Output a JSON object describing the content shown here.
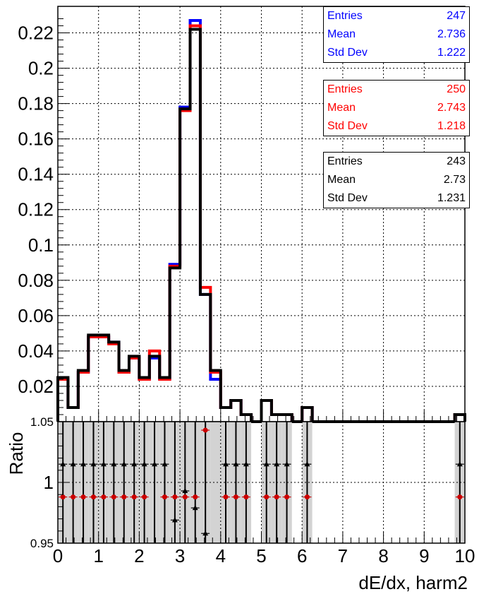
{
  "chart_data": [
    {
      "type": "line",
      "title": "",
      "xlabel": "dE/dx, harm2",
      "ylabel": "",
      "xlim": [
        0,
        10
      ],
      "ylim": [
        0,
        0.235
      ],
      "bin_width": 0.25,
      "grid": true,
      "y_ticks": [
        "0.02",
        "0.04",
        "0.06",
        "0.08",
        "0.1",
        "0.12",
        "0.14",
        "0.16",
        "0.18",
        "0.2",
        "0.22"
      ],
      "series": [
        {
          "color": "#0000ff",
          "values": [
            0.024,
            0.008,
            0.028,
            0.048,
            0.048,
            0.045,
            0.028,
            0.036,
            0.024,
            0.036,
            0.024,
            0.089,
            0.178,
            0.227,
            0.072,
            0.024,
            0.008,
            0.012,
            0.004,
            0,
            0.012,
            0.004,
            0.004,
            0,
            0.008,
            0,
            0,
            0,
            0,
            0,
            0,
            0,
            0,
            0,
            0,
            0,
            0,
            0,
            0,
            0.004
          ]
        },
        {
          "color": "#ff0000",
          "values": [
            0.024,
            0.008,
            0.028,
            0.048,
            0.048,
            0.044,
            0.028,
            0.036,
            0.024,
            0.04,
            0.024,
            0.088,
            0.176,
            0.224,
            0.076,
            0.028,
            0.008,
            0.012,
            0.004,
            0,
            0.012,
            0.004,
            0.004,
            0,
            0.008,
            0,
            0,
            0,
            0,
            0,
            0,
            0,
            0,
            0,
            0,
            0,
            0,
            0,
            0,
            0.004
          ]
        },
        {
          "color": "#000000",
          "values": [
            0.025,
            0.008,
            0.029,
            0.049,
            0.049,
            0.045,
            0.029,
            0.037,
            0.025,
            0.037,
            0.025,
            0.087,
            0.177,
            0.222,
            0.072,
            0.029,
            0.008,
            0.012,
            0.004,
            0,
            0.012,
            0.004,
            0.004,
            0,
            0.008,
            0,
            0,
            0,
            0,
            0,
            0,
            0,
            0,
            0,
            0,
            0,
            0,
            0,
            0,
            0.004
          ]
        }
      ],
      "stats": [
        {
          "color": "#0000ff",
          "rows": [
            [
              "Entries",
              "247"
            ],
            [
              "Mean",
              "2.736"
            ],
            [
              "Std Dev",
              "1.222"
            ]
          ]
        },
        {
          "color": "#ff0000",
          "rows": [
            [
              "Entries",
              "250"
            ],
            [
              "Mean",
              "2.743"
            ],
            [
              "Std Dev",
              "1.218"
            ]
          ]
        },
        {
          "color": "#000000",
          "rows": [
            [
              "Entries",
              "243"
            ],
            [
              "Mean",
              "2.73"
            ],
            [
              "Std Dev",
              "1.231"
            ]
          ]
        }
      ]
    },
    {
      "type": "scatter",
      "title": "",
      "xlabel": "dE/dx, harm2",
      "ylabel": "Ratio",
      "xlim": [
        0,
        10
      ],
      "ylim": [
        0.95,
        1.05
      ],
      "grid": true,
      "y_ticks": [
        "0.95",
        "1",
        "1.05"
      ],
      "x_ticks": [
        "0",
        "1",
        "2",
        "3",
        "4",
        "5",
        "6",
        "7",
        "8",
        "9",
        "10"
      ],
      "error_band_bins": [
        0,
        1,
        2,
        3,
        4,
        5,
        6,
        7,
        8,
        9,
        10,
        11,
        12,
        13,
        14,
        15,
        16,
        17,
        18,
        20,
        21,
        22,
        24,
        39
      ],
      "series": [
        {
          "color": "#cc0000",
          "points": [
            [
              0.125,
              0.988
            ],
            [
              0.375,
              0.988
            ],
            [
              0.625,
              0.988
            ],
            [
              0.875,
              0.988
            ],
            [
              1.125,
              0.988
            ],
            [
              1.375,
              0.988
            ],
            [
              1.625,
              0.988
            ],
            [
              1.875,
              0.988
            ],
            [
              2.125,
              0.988
            ],
            [
              2.625,
              0.988
            ],
            [
              2.875,
              0.988
            ],
            [
              3.125,
              0.988
            ],
            [
              3.375,
              0.988
            ],
            [
              3.625,
              1.043
            ],
            [
              4.125,
              0.988
            ],
            [
              4.375,
              0.988
            ],
            [
              4.625,
              0.988
            ],
            [
              5.125,
              0.988
            ],
            [
              5.375,
              0.988
            ],
            [
              5.625,
              0.988
            ],
            [
              6.125,
              0.988
            ],
            [
              9.875,
              0.988
            ]
          ]
        },
        {
          "color": "#000000",
          "points": [
            [
              0.125,
              1.015
            ],
            [
              0.375,
              1.015
            ],
            [
              0.625,
              1.015
            ],
            [
              0.875,
              1.015
            ],
            [
              1.125,
              1.015
            ],
            [
              1.375,
              1.015
            ],
            [
              1.625,
              1.015
            ],
            [
              1.875,
              1.015
            ],
            [
              2.125,
              1.015
            ],
            [
              2.375,
              1.015
            ],
            [
              2.625,
              1.015
            ],
            [
              2.875,
              0.969
            ],
            [
              3.125,
              0.993
            ],
            [
              3.375,
              0.979
            ],
            [
              3.625,
              0.958
            ],
            [
              4.125,
              1.015
            ],
            [
              4.375,
              1.015
            ],
            [
              4.625,
              1.015
            ],
            [
              5.125,
              1.015
            ],
            [
              5.375,
              1.015
            ],
            [
              5.625,
              1.015
            ],
            [
              6.125,
              1.015
            ],
            [
              9.875,
              1.015
            ]
          ]
        }
      ]
    }
  ]
}
